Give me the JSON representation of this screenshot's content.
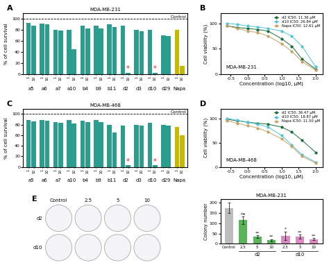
{
  "chart_data": [
    {
      "panel": "A",
      "type": "bar",
      "title": "MDA-MB-231",
      "ylabel": "% of cell survival",
      "categories": [
        "a5",
        "a6",
        "a7",
        "a10",
        "b4",
        "b9",
        "b11",
        "d2",
        "d3",
        "d10",
        "d29",
        "Napa"
      ],
      "colors": [
        "#2a9d8f",
        "#2a9d8f",
        "#2a9d8f",
        "#2a9d8f",
        "#2a9d8f",
        "#2a9d8f",
        "#2a9d8f",
        "#2a9d8f",
        "#2a9d8f",
        "#2a9d8f",
        "#2a9d8f",
        "#c9b800"
      ],
      "series": [
        {
          "name": "1",
          "values": [
            92,
            91,
            80,
            80,
            87,
            87,
            90,
            87,
            80,
            80,
            70,
            80
          ]
        },
        {
          "name": "10",
          "values": [
            88,
            90,
            79,
            45,
            83,
            82,
            85,
            3,
            78,
            3,
            69,
            15
          ]
        }
      ],
      "ylim": [
        0,
        110
      ],
      "yticks": [
        0,
        20,
        40,
        60,
        80,
        100
      ],
      "reference_line": {
        "value": 100,
        "label": "Control"
      },
      "annotations": [
        {
          "category": "d2",
          "series": "10",
          "text": "*",
          "color": "#e41a1c"
        },
        {
          "category": "d10",
          "series": "10",
          "text": "*",
          "color": "#e41a1c"
        }
      ]
    },
    {
      "panel": "B",
      "type": "line",
      "title": "MDA-MB-231",
      "xlabel": "Concentration (log10, μM)",
      "ylabel": "Cell viability (%)",
      "x": [
        -0.6,
        -0.3,
        0.0,
        0.3,
        0.6,
        1.0,
        1.3,
        1.6,
        2.0
      ],
      "series": [
        {
          "name": "d2 IC50: 11.36 μM",
          "color": "#1b6b3a",
          "values": [
            95,
            92,
            90,
            88,
            85,
            70,
            55,
            30,
            10
          ]
        },
        {
          "name": "d10 IC50: 26.84 μM",
          "color": "#4fc3d9",
          "values": [
            100,
            98,
            95,
            93,
            90,
            85,
            75,
            55,
            15
          ]
        },
        {
          "name": "Napa IC50: 12.61 μM",
          "color": "#c8a165",
          "values": [
            95,
            90,
            85,
            82,
            75,
            60,
            45,
            25,
            8
          ]
        }
      ],
      "xlim": [
        -0.8,
        2.2
      ],
      "xticks": [
        -0.5,
        0.0,
        0.5,
        1.0,
        1.5,
        2.0
      ],
      "ylim": [
        0,
        120
      ],
      "yticks": [
        0,
        50,
        100
      ],
      "legend": "upper right"
    },
    {
      "panel": "C",
      "type": "bar",
      "title": "MDA-MB-468",
      "ylabel": "% of cell survival",
      "categories": [
        "a5",
        "a6",
        "a7",
        "a10",
        "b4",
        "b9",
        "b11",
        "d2",
        "d3",
        "d10",
        "d29",
        "Napa"
      ],
      "colors": [
        "#2a9d8f",
        "#2a9d8f",
        "#2a9d8f",
        "#2a9d8f",
        "#2a9d8f",
        "#2a9d8f",
        "#2a9d8f",
        "#2a9d8f",
        "#2a9d8f",
        "#2a9d8f",
        "#2a9d8f",
        "#c9b800"
      ],
      "series": [
        {
          "name": "1",
          "values": [
            88,
            89,
            85,
            88,
            87,
            88,
            80,
            78,
            80,
            83,
            80,
            75
          ]
        },
        {
          "name": "10",
          "values": [
            86,
            87,
            83,
            82,
            85,
            84,
            65,
            3,
            78,
            3,
            78,
            60
          ]
        }
      ],
      "ylim": [
        0,
        110
      ],
      "yticks": [
        0,
        20,
        40,
        60,
        80,
        100
      ],
      "reference_line": {
        "value": 100,
        "label": "Control"
      },
      "annotations": [
        {
          "category": "d2",
          "series": "10",
          "text": "*",
          "color": "#e41a1c"
        },
        {
          "category": "d10",
          "series": "10",
          "text": "*",
          "color": "#e41a1c"
        }
      ]
    },
    {
      "panel": "D",
      "type": "line",
      "title": "MDA-MB-468",
      "xlabel": "Concentration (log10, μM)",
      "ylabel": "Cell viability (%)",
      "x": [
        -0.6,
        -0.3,
        0.0,
        0.3,
        0.6,
        1.0,
        1.3,
        1.6,
        2.0
      ],
      "series": [
        {
          "name": "d2 IC50: 36.47 μM",
          "color": "#1b6b3a",
          "values": [
            98,
            95,
            92,
            90,
            88,
            82,
            72,
            55,
            30
          ]
        },
        {
          "name": "d10 IC50: 18.87 μM",
          "color": "#4fc3d9",
          "values": [
            100,
            96,
            92,
            88,
            82,
            65,
            45,
            25,
            10
          ]
        },
        {
          "name": "Napa IC50: 11.50 μM",
          "color": "#c8a165",
          "values": [
            95,
            90,
            85,
            80,
            72,
            58,
            42,
            22,
            8
          ]
        }
      ],
      "xlim": [
        -0.8,
        2.2
      ],
      "xticks": [
        -0.5,
        0.0,
        0.5,
        1.0,
        1.5,
        2.0
      ],
      "ylim": [
        0,
        120
      ],
      "yticks": [
        0,
        50,
        100
      ],
      "legend": "upper right"
    },
    {
      "panel": "E",
      "type": "image_grid",
      "column_labels": [
        "Control",
        "2.5",
        "5",
        "10"
      ],
      "row_labels": [
        "d2",
        "d10"
      ]
    },
    {
      "type": "bar",
      "title": "MDA-MB-231",
      "ylabel": "Colony number",
      "categories": [
        "Control",
        "2.5",
        "5",
        "10",
        "2.5",
        "5",
        "10"
      ],
      "group_labels": [
        null,
        "d2",
        "d2",
        "d2",
        "d10",
        "d10",
        "d10"
      ],
      "values": [
        175,
        115,
        35,
        18,
        40,
        35,
        22
      ],
      "errors": [
        25,
        20,
        8,
        5,
        20,
        10,
        5
      ],
      "annotations": [
        null,
        "ns",
        "**",
        "**",
        "*",
        "**",
        "**"
      ],
      "colors": [
        "#bdbdbd",
        "#5ab55a",
        "#5ab55a",
        "#5ab55a",
        "#d98ac0",
        "#d98ac0",
        "#d98ac0"
      ],
      "ylim": [
        0,
        220
      ],
      "yticks": [
        0,
        50,
        100,
        150,
        200
      ]
    }
  ]
}
